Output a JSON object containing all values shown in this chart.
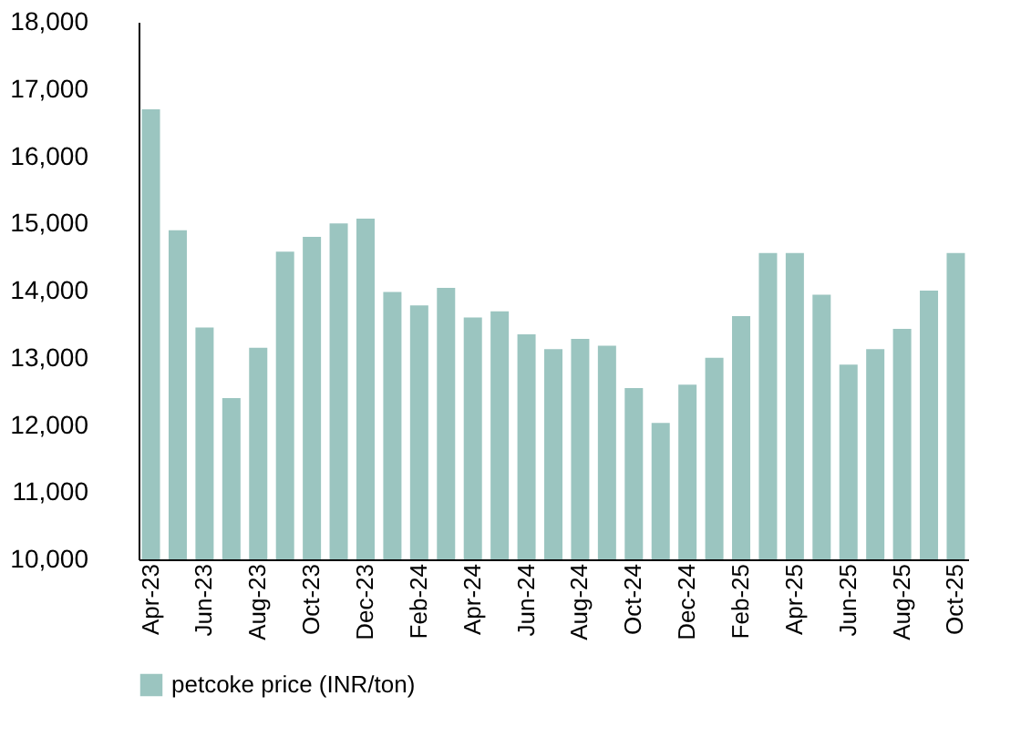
{
  "chart_data": {
    "type": "bar",
    "categories": [
      "Apr-23",
      null,
      "Jun-23",
      null,
      "Aug-23",
      null,
      "Oct-23",
      null,
      "Dec-23",
      null,
      "Feb-24",
      null,
      "Apr-24",
      null,
      "Jun-24",
      null,
      "Aug-24",
      null,
      "Oct-24",
      null,
      "Dec-24",
      null,
      "Feb-25",
      null,
      "Apr-25",
      null,
      "Jun-25",
      null,
      "Aug-25",
      null,
      "Oct-25"
    ],
    "series": [
      {
        "name": "petcoke price (INR/ton)",
        "color": "#9bc5c0",
        "values": [
          16700,
          14900,
          13450,
          12400,
          13150,
          14580,
          14800,
          15000,
          15070,
          13980,
          13780,
          14040,
          13600,
          13690,
          13350,
          13130,
          13280,
          13180,
          12550,
          12030,
          12600,
          13000,
          13620,
          14560,
          14560,
          13940,
          12900,
          13130,
          13430,
          14000,
          14560
        ]
      }
    ],
    "ylim": [
      10000,
      18000
    ],
    "yticks": [
      {
        "value": 10000,
        "label": "10,000"
      },
      {
        "value": 11000,
        "label": "11,000"
      },
      {
        "value": 12000,
        "label": "12,000"
      },
      {
        "value": 13000,
        "label": "13,000"
      },
      {
        "value": 14000,
        "label": "14,000"
      },
      {
        "value": 15000,
        "label": "15,000"
      },
      {
        "value": 16000,
        "label": "16,000"
      },
      {
        "value": 17000,
        "label": "17,000"
      },
      {
        "value": 18000,
        "label": "18,000"
      }
    ],
    "grid": false,
    "legend": "bottom"
  }
}
